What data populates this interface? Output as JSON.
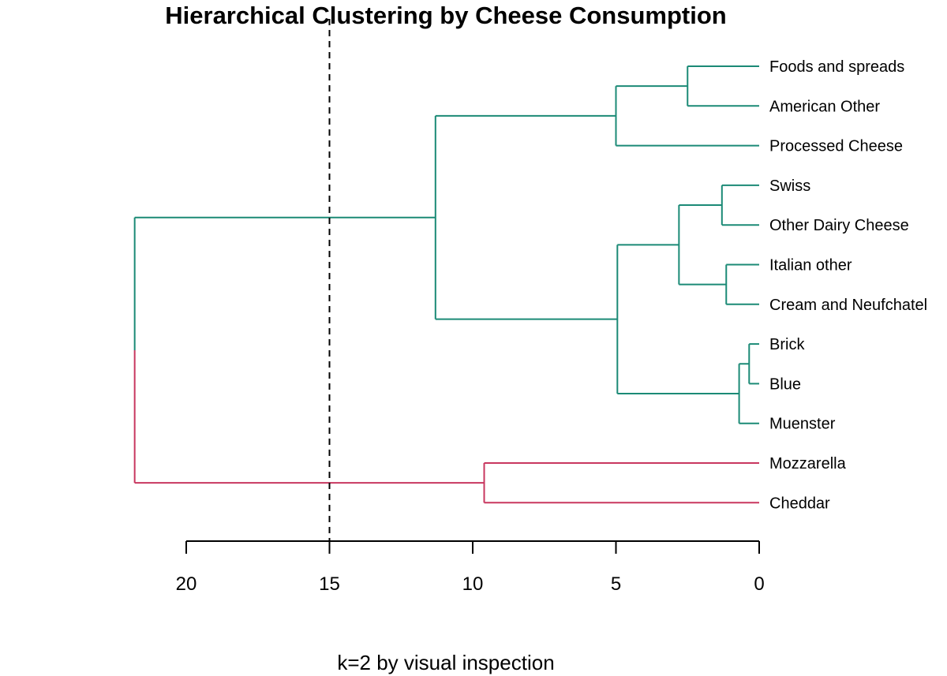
{
  "chart_data": {
    "type": "dendrogram",
    "title": "Hierarchical Clustering by Cheese Consumption",
    "caption": "k=2 by visual inspection",
    "x_axis": {
      "ticks": [
        20,
        15,
        10,
        5,
        0
      ],
      "range": [
        22,
        0
      ],
      "reversed": true
    },
    "cut_height": 15,
    "leaves": [
      "Foods and spreads",
      "American Other",
      "Processed Cheese",
      "Swiss",
      "Other Dairy Cheese",
      "Italian other",
      "Cream and Neufchatel",
      "Brick",
      "Blue",
      "Muenster",
      "Mozzarella",
      "Cheddar"
    ],
    "merges": [
      {
        "id": "m1",
        "children": [
          "Brick",
          "Blue"
        ],
        "height": 0.35,
        "cluster": 1
      },
      {
        "id": "m2",
        "children": [
          "m1",
          "Muenster"
        ],
        "height": 0.7,
        "cluster": 1
      },
      {
        "id": "m3",
        "children": [
          "Italian other",
          "Cream and Neufchatel"
        ],
        "height": 1.15,
        "cluster": 1
      },
      {
        "id": "m4",
        "children": [
          "Swiss",
          "Other Dairy Cheese"
        ],
        "height": 1.3,
        "cluster": 1
      },
      {
        "id": "m5",
        "children": [
          "Foods and spreads",
          "American Other"
        ],
        "height": 2.5,
        "cluster": 1
      },
      {
        "id": "m6",
        "children": [
          "m4",
          "m3"
        ],
        "height": 2.8,
        "cluster": 1
      },
      {
        "id": "m7",
        "children": [
          "m5",
          "Processed Cheese"
        ],
        "height": 5.0,
        "cluster": 1
      },
      {
        "id": "m8",
        "children": [
          "m6",
          "m2"
        ],
        "height": 4.95,
        "cluster": 1
      },
      {
        "id": "m9",
        "children": [
          "Mozzarella",
          "Cheddar"
        ],
        "height": 9.6,
        "cluster": 2
      },
      {
        "id": "m10",
        "children": [
          "m7",
          "m8"
        ],
        "height": 11.3,
        "cluster": 1
      },
      {
        "id": "m11",
        "children": [
          "m10",
          "m9"
        ],
        "height": 21.8,
        "cluster": 0
      }
    ],
    "cluster_colors": {
      "1": "#1b8a76",
      "2": "#c8375f"
    }
  }
}
